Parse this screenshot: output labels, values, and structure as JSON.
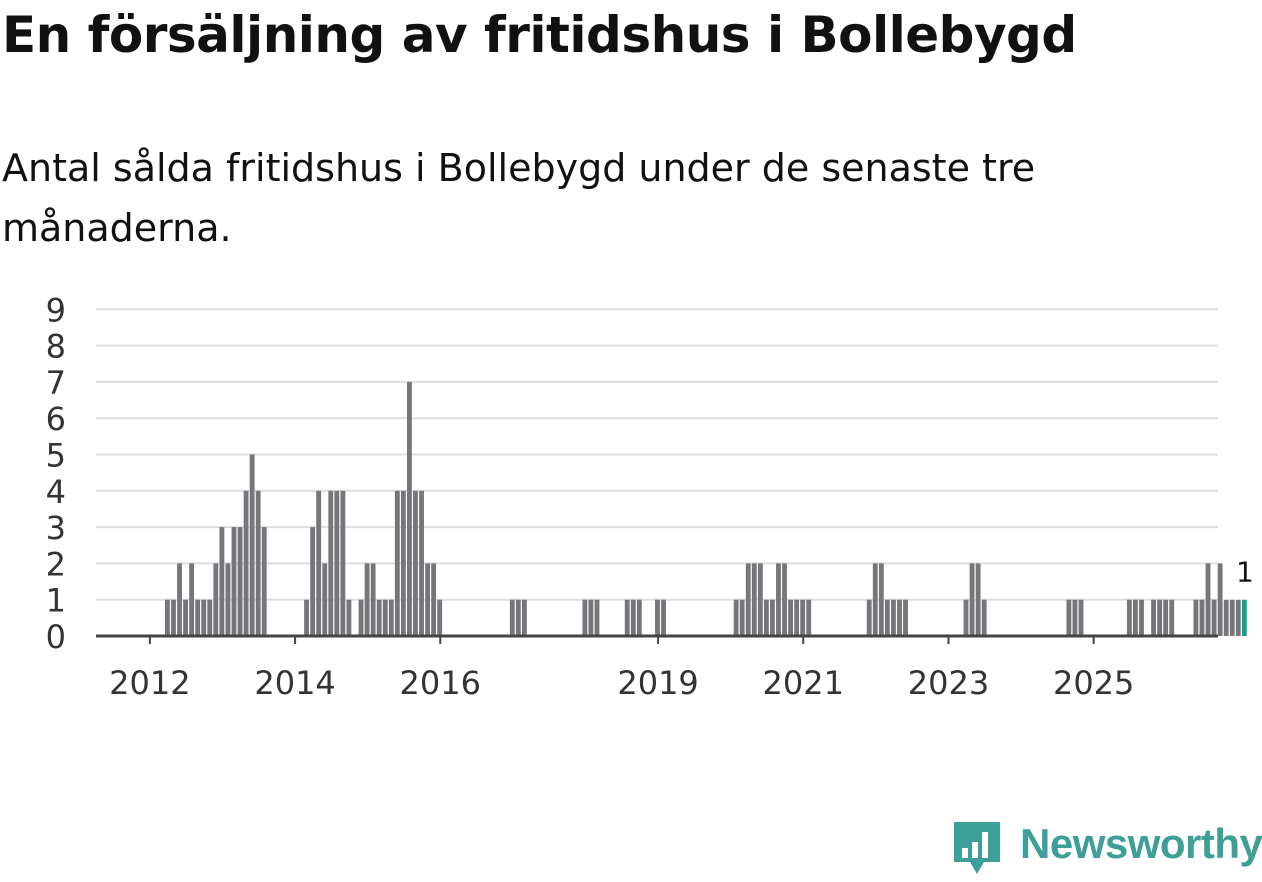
{
  "title": "En försäljning av fritidshus i Bollebygd",
  "subtitle": "Antal sålda fritidshus i Bollebygd under de senaste tre månaderna.",
  "brand": {
    "name": "Newsworthy",
    "icon": "newsworthy-logo-icon",
    "color": "#3d9f97"
  },
  "colors": {
    "bar": "#76767b",
    "highlight": "#1a9e93",
    "grid": "#dddddd",
    "axis": "#444444"
  },
  "chart_data": {
    "type": "bar",
    "title": "En försäljning av fritidshus i Bollebygd",
    "xlabel": "",
    "ylabel": "",
    "ylim": [
      0,
      9
    ],
    "yticks": [
      "0",
      "1",
      "2",
      "3",
      "4",
      "5",
      "6",
      "7",
      "8",
      "9"
    ],
    "xtick_labels": [
      {
        "label": "2012",
        "index": 9
      },
      {
        "label": "2014",
        "index": 33
      },
      {
        "label": "2016",
        "index": 57
      },
      {
        "label": "2019",
        "index": 93
      },
      {
        "label": "2021",
        "index": 117
      },
      {
        "label": "2023",
        "index": 141
      },
      {
        "label": "2025",
        "index": 165
      }
    ],
    "start": "2011-01",
    "values": [
      0,
      0,
      0,
      0,
      0,
      0,
      0,
      0,
      0,
      0,
      0,
      0,
      1,
      1,
      2,
      1,
      2,
      1,
      1,
      1,
      2,
      3,
      2,
      3,
      3,
      4,
      5,
      4,
      3,
      0,
      0,
      0,
      0,
      0,
      0,
      1,
      3,
      4,
      2,
      4,
      4,
      4,
      1,
      0,
      1,
      2,
      2,
      1,
      1,
      1,
      4,
      4,
      7,
      4,
      4,
      2,
      2,
      1,
      0,
      0,
      0,
      0,
      0,
      0,
      0,
      0,
      0,
      0,
      0,
      1,
      1,
      1,
      0,
      0,
      0,
      0,
      0,
      0,
      0,
      0,
      0,
      1,
      1,
      1,
      0,
      0,
      0,
      0,
      1,
      1,
      1,
      0,
      0,
      1,
      1,
      0,
      0,
      0,
      0,
      0,
      0,
      0,
      0,
      0,
      0,
      0,
      1,
      1,
      2,
      2,
      2,
      1,
      1,
      2,
      2,
      1,
      1,
      1,
      1,
      0,
      0,
      0,
      0,
      0,
      0,
      0,
      0,
      0,
      1,
      2,
      2,
      1,
      1,
      1,
      1,
      0,
      0,
      0,
      0,
      0,
      0,
      0,
      0,
      0,
      1,
      2,
      2,
      1,
      0,
      0,
      0,
      0,
      0,
      0,
      0,
      0,
      0,
      0,
      0,
      0,
      0,
      1,
      1,
      1,
      0,
      0,
      0,
      0,
      0,
      0,
      0,
      1,
      1,
      1,
      0,
      1,
      1,
      1,
      1,
      0,
      0,
      0,
      1,
      1,
      2,
      1,
      2,
      1,
      1,
      1,
      1
    ],
    "highlight_last": true,
    "annotation": "1"
  }
}
